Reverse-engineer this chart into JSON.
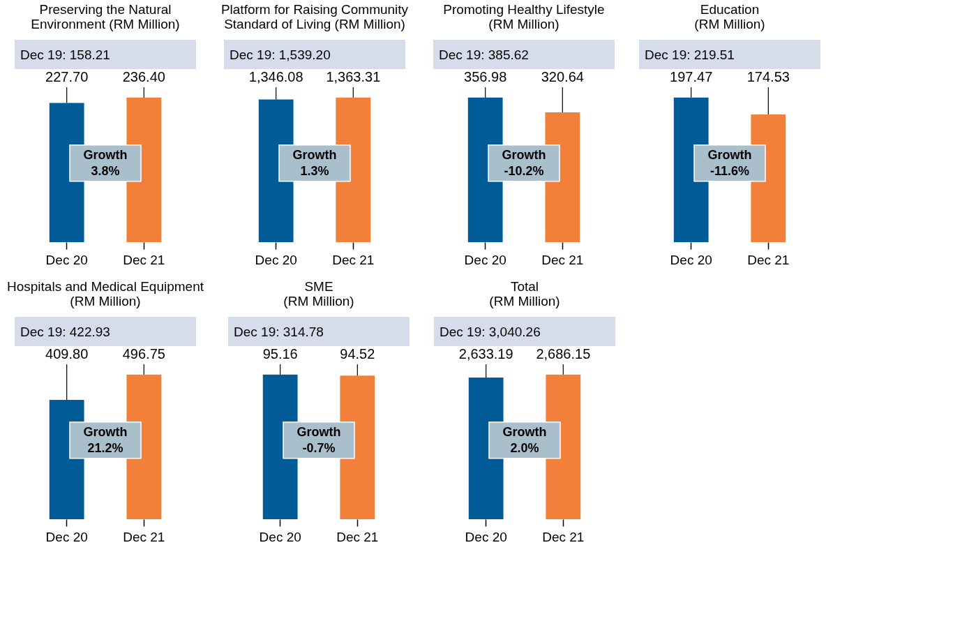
{
  "chart_data": [
    {
      "type": "bar",
      "title": "Preserving the Natural\nEnvironment (RM Million)",
      "subtitle": "Dec 19: 158.21",
      "categories": [
        "Dec 20",
        "Dec 21"
      ],
      "values": [
        227.7,
        236.4
      ],
      "value_labels": [
        "227.70",
        "236.40"
      ],
      "colors": [
        "#005b96",
        "#f27f3a"
      ],
      "annotations": [
        "Growth 3.8%"
      ]
    },
    {
      "type": "bar",
      "title": "Platform for Raising Community\nStandard of Living (RM Million)",
      "subtitle": "Dec 19: 1,539.20",
      "categories": [
        "Dec 20",
        "Dec 21"
      ],
      "values": [
        1346.08,
        1363.31
      ],
      "value_labels": [
        "1,346.08",
        "1,363.31"
      ],
      "colors": [
        "#005b96",
        "#f27f3a"
      ],
      "annotations": [
        "Growth 1.3%"
      ]
    },
    {
      "type": "bar",
      "title": "Promoting Healthy Lifestyle\n(RM Million)",
      "subtitle": "Dec 19: 385.62",
      "categories": [
        "Dec 20",
        "Dec 21"
      ],
      "values": [
        356.98,
        320.64
      ],
      "value_labels": [
        "356.98",
        "320.64"
      ],
      "colors": [
        "#005b96",
        "#f27f3a"
      ],
      "annotations": [
        "Growth -10.2%"
      ]
    },
    {
      "type": "bar",
      "title": "Education\n(RM Million)",
      "subtitle": "Dec 19: 219.51",
      "categories": [
        "Dec 20",
        "Dec 21"
      ],
      "values": [
        197.47,
        174.53
      ],
      "value_labels": [
        "197.47",
        "174.53"
      ],
      "colors": [
        "#005b96",
        "#f27f3a"
      ],
      "annotations": [
        "Growth -11.6%"
      ]
    },
    {
      "type": "bar",
      "title": "Hospitals and Medical Equipment\n(RM Million)",
      "subtitle": "Dec 19: 422.93",
      "categories": [
        "Dec 20",
        "Dec 21"
      ],
      "values": [
        409.8,
        496.75
      ],
      "value_labels": [
        "409.80",
        "496.75"
      ],
      "colors": [
        "#005b96",
        "#f27f3a"
      ],
      "annotations": [
        "Growth 21.2%"
      ]
    },
    {
      "type": "bar",
      "title": "SME\n(RM Million)",
      "subtitle": "Dec 19: 314.78",
      "categories": [
        "Dec 20",
        "Dec 21"
      ],
      "values": [
        95.16,
        94.52
      ],
      "value_labels": [
        "95.16",
        "94.52"
      ],
      "colors": [
        "#005b96",
        "#f27f3a"
      ],
      "annotations": [
        "Growth -0.7%"
      ]
    },
    {
      "type": "bar",
      "title": "Total\n(RM Million)",
      "subtitle": "Dec 19: 3,040.26",
      "categories": [
        "Dec 20",
        "Dec 21"
      ],
      "values": [
        2633.19,
        2686.15
      ],
      "value_labels": [
        "2,633.19",
        "2,686.15"
      ],
      "colors": [
        "#005b96",
        "#f27f3a"
      ],
      "annotations": [
        "Growth 2.0%"
      ]
    }
  ]
}
